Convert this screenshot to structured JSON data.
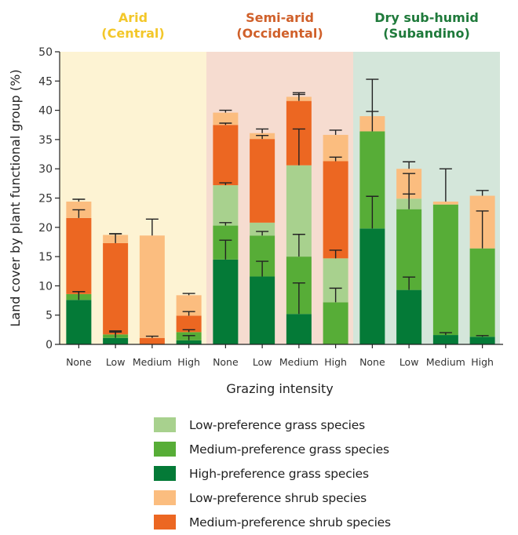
{
  "chart_data": {
    "type": "bar",
    "stacked": true,
    "title": "",
    "xlabel": "Grazing intensity",
    "ylabel": "Land cover by plant functional group (%)",
    "ylim": [
      0,
      50
    ],
    "yticks": [
      0,
      5,
      10,
      15,
      20,
      25,
      30,
      35,
      40,
      45,
      50
    ],
    "grid": false,
    "legend_position": "bottom",
    "regions": [
      {
        "title_line1": "Arid",
        "title_line2": "(Central)",
        "title_color": "#f3c72a",
        "background": "#fdf3d3"
      },
      {
        "title_line1": "Semi-arid",
        "title_line2": "(Occidental)",
        "title_color": "#d0602a",
        "background": "#f6dcd0"
      },
      {
        "title_line1": "Dry sub-humid",
        "title_line2": "(Subandino)",
        "title_color": "#1f7a3b",
        "background": "#d4e6da"
      }
    ],
    "categories": [
      "None",
      "Low",
      "Medium",
      "High",
      "None",
      "Low",
      "Medium",
      "High",
      "None",
      "Low",
      "Medium",
      "High"
    ],
    "series": [
      {
        "name": "High-preference grass species",
        "color": "#047a37",
        "values": [
          7.6,
          1.1,
          0.0,
          0.7,
          14.5,
          11.6,
          5.2,
          0.0,
          19.8,
          9.3,
          1.6,
          1.3
        ],
        "error_tops": [
          9.0,
          2.3,
          null,
          1.5,
          17.8,
          14.2,
          10.5,
          null,
          25.3,
          11.5,
          2.0,
          1.5
        ]
      },
      {
        "name": "Medium-preference grass species",
        "color": "#57ad37",
        "values": [
          1.0,
          0.6,
          0.0,
          1.4,
          5.8,
          7.0,
          9.8,
          7.2,
          16.6,
          13.8,
          22.3,
          15.1
        ],
        "error_tops": [
          9.0,
          2.1,
          null,
          2.5,
          20.8,
          19.3,
          18.8,
          9.6,
          39.8,
          25.7,
          null,
          22.8
        ]
      },
      {
        "name": "Low-preference grass species",
        "color": "#a8d18e",
        "values": [
          0.0,
          0.0,
          0.0,
          0.0,
          6.9,
          2.2,
          15.6,
          7.5,
          0.0,
          1.8,
          0.0,
          0.0
        ],
        "error_tops": [
          null,
          null,
          null,
          null,
          27.6,
          null,
          36.8,
          16.1,
          null,
          29.2,
          null,
          null
        ]
      },
      {
        "name": "Medium-preference shrub species",
        "color": "#ec6722",
        "values": [
          13.0,
          15.6,
          1.1,
          2.8,
          10.3,
          14.3,
          11.0,
          16.6,
          0.0,
          0.0,
          0.0,
          0.0
        ],
        "error_tops": [
          23.0,
          18.9,
          1.4,
          5.6,
          37.8,
          35.7,
          42.7,
          32.0,
          null,
          null,
          null,
          null
        ]
      },
      {
        "name": "Low-preference shrub species",
        "color": "#fbbd7f",
        "values": [
          2.8,
          1.4,
          17.5,
          3.5,
          2.1,
          1.0,
          0.7,
          4.5,
          2.6,
          5.1,
          0.5,
          9.0
        ],
        "error_tops": [
          24.8,
          18.9,
          21.4,
          8.7,
          40.0,
          36.8,
          43.0,
          36.6,
          45.3,
          31.2,
          30.0,
          26.3
        ]
      }
    ]
  },
  "legend": {
    "items": [
      {
        "label": "Low-preference grass species",
        "color": "#a8d18e"
      },
      {
        "label": "Medium-preference grass species",
        "color": "#57ad37"
      },
      {
        "label": "High-preference grass species",
        "color": "#047a37"
      },
      {
        "label": "Low-preference shrub species",
        "color": "#fbbd7f"
      },
      {
        "label": "Medium-preference shrub species",
        "color": "#ec6722"
      }
    ]
  }
}
